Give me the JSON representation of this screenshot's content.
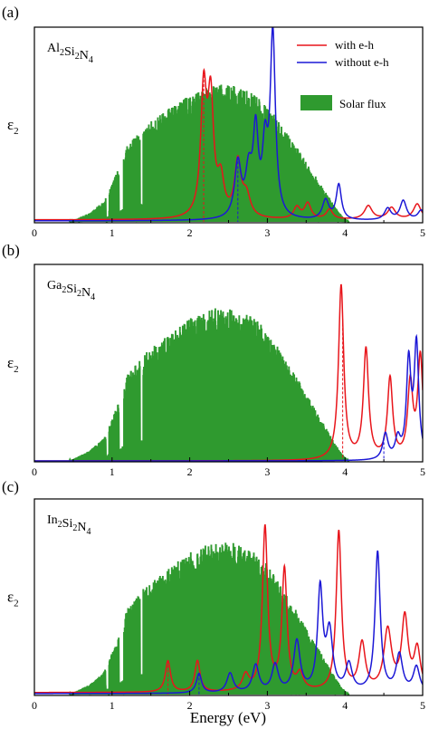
{
  "figure": {
    "xlabel": "Energy (eV)"
  },
  "legend": {
    "with_eh": "with e-h",
    "without_eh": "without e-h",
    "solar": "Solar flux"
  },
  "colors": {
    "with_eh": "#e8151b",
    "without_eh": "#1c18d6",
    "solar": "#2f9a2f",
    "axis": "#000000"
  },
  "chart_data": [
    {
      "type": "line",
      "panel_label": "(a)",
      "material": {
        "parts": [
          [
            "Al",
            "2"
          ],
          [
            "Si",
            "2"
          ],
          [
            "N",
            "4"
          ]
        ]
      },
      "ylabel": {
        "main": "ε",
        "sub": "2"
      },
      "xlim": [
        0,
        5
      ],
      "x_ticks": [
        "0",
        "1",
        "2",
        "3",
        "4",
        "5"
      ],
      "legend_shown": true,
      "legend_position": "top-right",
      "series": [
        {
          "name": "with e-h",
          "color": "#e8151b",
          "baseline": 0.01,
          "peaks": [
            [
              2.18,
              0.64,
              0.045
            ],
            [
              2.27,
              0.58,
              0.045
            ],
            [
              2.4,
              0.18,
              0.05
            ],
            [
              2.62,
              0.28,
              0.05
            ],
            [
              2.73,
              0.11,
              0.06
            ],
            [
              3.38,
              0.06,
              0.05
            ],
            [
              3.52,
              0.08,
              0.05
            ],
            [
              3.8,
              0.05,
              0.05
            ],
            [
              4.3,
              0.07,
              0.06
            ],
            [
              4.6,
              0.06,
              0.06
            ],
            [
              4.93,
              0.08,
              0.06
            ]
          ],
          "gap_marker": 2.18
        },
        {
          "name": "without e-h",
          "color": "#1c18d6",
          "baseline": 0.005,
          "peaks": [
            [
              2.62,
              0.28,
              0.05
            ],
            [
              2.76,
              0.22,
              0.05
            ],
            [
              2.85,
              0.42,
              0.04
            ],
            [
              2.97,
              0.33,
              0.04
            ],
            [
              3.07,
              0.94,
              0.04
            ],
            [
              3.75,
              0.1,
              0.05
            ],
            [
              3.92,
              0.18,
              0.04
            ],
            [
              4.55,
              0.06,
              0.05
            ],
            [
              4.75,
              0.1,
              0.05
            ],
            [
              4.98,
              0.05,
              0.05
            ]
          ],
          "gap_marker": 2.62
        }
      ]
    },
    {
      "type": "line",
      "panel_label": "(b)",
      "material": {
        "parts": [
          [
            "Ga",
            "2"
          ],
          [
            "Si",
            "2"
          ],
          [
            "N",
            "4"
          ]
        ]
      },
      "ylabel": {
        "main": "ε",
        "sub": "2"
      },
      "xlim": [
        0,
        5
      ],
      "x_ticks": [
        "0",
        "1",
        "2",
        "3",
        "4",
        "5"
      ],
      "legend_shown": false,
      "series": [
        {
          "name": "with e-h",
          "color": "#e8151b",
          "baseline": 0.0,
          "peaks": [
            [
              3.95,
              0.89,
              0.04
            ],
            [
              4.27,
              0.56,
              0.04
            ],
            [
              4.58,
              0.41,
              0.04
            ],
            [
              4.84,
              0.38,
              0.04
            ],
            [
              4.97,
              0.52,
              0.04
            ]
          ],
          "gap_marker": 3.97
        },
        {
          "name": "without e-h",
          "color": "#1c18d6",
          "baseline": 0.0,
          "peaks": [
            [
              4.52,
              0.13,
              0.04
            ],
            [
              4.68,
              0.1,
              0.04
            ],
            [
              4.82,
              0.49,
              0.035
            ],
            [
              4.92,
              0.58,
              0.035
            ]
          ],
          "gap_marker": 4.5
        }
      ]
    },
    {
      "type": "line",
      "panel_label": "(c)",
      "material": {
        "parts": [
          [
            "In",
            "2"
          ],
          [
            "Si",
            "2"
          ],
          [
            "N",
            "4"
          ]
        ]
      },
      "ylabel": {
        "main": "ε",
        "sub": "2"
      },
      "xlim": [
        0,
        5
      ],
      "x_ticks": [
        "0",
        "1",
        "2",
        "3",
        "4",
        "5"
      ],
      "legend_shown": false,
      "series": [
        {
          "name": "with e-h",
          "color": "#e8151b",
          "baseline": 0.01,
          "peaks": [
            [
              1.72,
              0.16,
              0.04
            ],
            [
              2.1,
              0.16,
              0.04
            ],
            [
              2.72,
              0.08,
              0.05
            ],
            [
              2.97,
              0.84,
              0.04
            ],
            [
              3.22,
              0.62,
              0.04
            ],
            [
              3.42,
              0.08,
              0.05
            ],
            [
              3.92,
              0.82,
              0.04
            ],
            [
              4.22,
              0.24,
              0.05
            ],
            [
              4.55,
              0.31,
              0.06
            ],
            [
              4.77,
              0.37,
              0.05
            ],
            [
              4.93,
              0.21,
              0.05
            ]
          ],
          "gap_marker": 1.72
        },
        {
          "name": "without e-h",
          "color": "#1c18d6",
          "baseline": 0.005,
          "peaks": [
            [
              2.12,
              0.1,
              0.04
            ],
            [
              2.52,
              0.1,
              0.05
            ],
            [
              2.85,
              0.14,
              0.05
            ],
            [
              3.1,
              0.14,
              0.05
            ],
            [
              3.38,
              0.26,
              0.05
            ],
            [
              3.68,
              0.52,
              0.04
            ],
            [
              3.8,
              0.3,
              0.05
            ],
            [
              4.05,
              0.14,
              0.05
            ],
            [
              4.42,
              0.72,
              0.04
            ],
            [
              4.7,
              0.19,
              0.05
            ],
            [
              4.92,
              0.13,
              0.05
            ]
          ],
          "gap_marker": 2.12
        }
      ]
    }
  ],
  "solar_flux": {
    "name": "Solar flux",
    "color": "#2f9a2f",
    "envelope": [
      [
        0.45,
        0.0
      ],
      [
        0.55,
        0.02
      ],
      [
        0.7,
        0.05
      ],
      [
        0.9,
        0.12
      ],
      [
        1.0,
        0.22
      ],
      [
        1.1,
        0.33
      ],
      [
        1.2,
        0.45
      ],
      [
        1.4,
        0.55
      ],
      [
        1.6,
        0.62
      ],
      [
        1.8,
        0.68
      ],
      [
        2.0,
        0.74
      ],
      [
        2.2,
        0.78
      ],
      [
        2.4,
        0.8
      ],
      [
        2.6,
        0.79
      ],
      [
        2.8,
        0.75
      ],
      [
        3.0,
        0.68
      ],
      [
        3.2,
        0.55
      ],
      [
        3.4,
        0.42
      ],
      [
        3.6,
        0.28
      ],
      [
        3.8,
        0.14
      ],
      [
        3.95,
        0.04
      ],
      [
        4.05,
        0.0
      ]
    ],
    "panel_scale": [
      0.9,
      1.0,
      1.0
    ]
  }
}
